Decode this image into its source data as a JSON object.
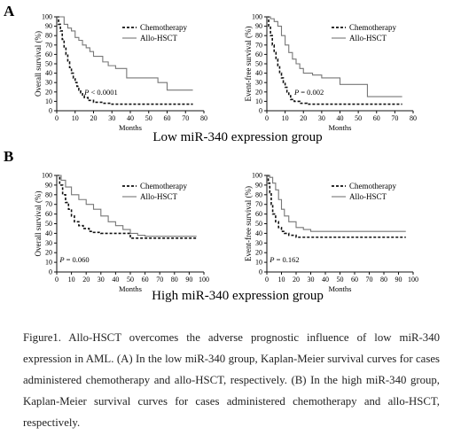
{
  "figure": {
    "panel_a_label": "A",
    "panel_b_label": "B",
    "group_a_title": "Low miR-340 expression group",
    "group_b_title": "High miR-340 expression group"
  },
  "caption": "Figure1. Allo-HSCT overcomes the adverse prognostic influence of low miR-340 expression in AML. (A) In the low miR-340 group, Kaplan-Meier survival curves for cases administered chemotherapy and allo-HSCT, respectively. (B) In the high miR-340 group, Kaplan-Meier survival curves for cases administered chemotherapy and allo-HSCT, respectively.",
  "colors": {
    "chemotherapy": "#111111",
    "allo_hsct": "#777777"
  },
  "chart_data": [
    {
      "type": "line",
      "panel": "A",
      "xlabel": "Months",
      "ylabel": "Overall survival (%)",
      "xlim": [
        0,
        80
      ],
      "ylim": [
        0,
        100
      ],
      "xticks": [
        "0",
        "10",
        "20",
        "30",
        "40",
        "50",
        "60",
        "70",
        "80"
      ],
      "yticks": [
        "0",
        "10",
        "20",
        "30",
        "40",
        "50",
        "60",
        "70",
        "80",
        "90",
        "100"
      ],
      "annotation": {
        "prefix": "P",
        "text": " < 0.0001",
        "x": 15,
        "y": 17
      },
      "legend_position": "top-right",
      "series": [
        {
          "name": "Chemotherapy",
          "style": "dashed",
          "step": true,
          "x": [
            0,
            1,
            2,
            3,
            4,
            5,
            6,
            7,
            8,
            9,
            10,
            11,
            12,
            13,
            14,
            15,
            17,
            20,
            25,
            30,
            40,
            50,
            60,
            74
          ],
          "y": [
            100,
            92,
            85,
            76,
            68,
            60,
            52,
            46,
            40,
            35,
            30,
            26,
            22,
            19,
            16,
            14,
            11,
            9,
            8,
            7,
            7,
            7,
            7,
            7
          ]
        },
        {
          "name": "Allo-HSCT",
          "style": "solid",
          "step": true,
          "x": [
            0,
            2,
            4,
            6,
            8,
            10,
            12,
            14,
            16,
            18,
            20,
            25,
            28,
            32,
            38,
            55,
            60,
            68,
            74
          ],
          "y": [
            100,
            100,
            92,
            88,
            85,
            78,
            75,
            70,
            67,
            63,
            58,
            52,
            48,
            45,
            35,
            30,
            22,
            22,
            22
          ]
        }
      ]
    },
    {
      "type": "line",
      "panel": "A",
      "xlabel": "Months",
      "ylabel": "Event-free survival (%)",
      "xlim": [
        0,
        80
      ],
      "ylim": [
        0,
        100
      ],
      "xticks": [
        "0",
        "10",
        "20",
        "30",
        "40",
        "50",
        "60",
        "70",
        "80"
      ],
      "yticks": [
        "0",
        "10",
        "20",
        "30",
        "40",
        "50",
        "60",
        "70",
        "80",
        "90",
        "100"
      ],
      "annotation": {
        "prefix": "P",
        "text": " = 0.002",
        "x": 15,
        "y": 17
      },
      "legend_position": "top-right",
      "series": [
        {
          "name": "Chemotherapy",
          "style": "dashed",
          "step": true,
          "x": [
            0,
            1,
            2,
            3,
            4,
            5,
            6,
            7,
            8,
            9,
            10,
            11,
            12,
            13,
            15,
            18,
            22,
            30,
            40,
            74
          ],
          "y": [
            100,
            90,
            80,
            70,
            62,
            55,
            48,
            40,
            35,
            30,
            25,
            20,
            16,
            12,
            10,
            8,
            7,
            7,
            7,
            7
          ]
        },
        {
          "name": "Allo-HSCT",
          "style": "solid",
          "step": true,
          "x": [
            0,
            2,
            4,
            6,
            8,
            10,
            12,
            14,
            16,
            18,
            20,
            25,
            30,
            40,
            45,
            55,
            74
          ],
          "y": [
            100,
            98,
            95,
            90,
            80,
            70,
            62,
            55,
            50,
            45,
            40,
            38,
            35,
            28,
            28,
            15,
            15
          ]
        }
      ]
    },
    {
      "type": "line",
      "panel": "B",
      "xlabel": "Months",
      "ylabel": "Overall survival (%)",
      "xlim": [
        0,
        100
      ],
      "ylim": [
        0,
        100
      ],
      "xticks": [
        "0",
        "10",
        "20",
        "30",
        "40",
        "50",
        "60",
        "70",
        "80",
        "90",
        "100"
      ],
      "yticks": [
        "0",
        "10",
        "20",
        "30",
        "40",
        "50",
        "60",
        "70",
        "80",
        "90",
        "100"
      ],
      "annotation": {
        "prefix": "P",
        "text": " = 0.060",
        "x": 2,
        "y": 10
      },
      "legend_position": "top-right",
      "series": [
        {
          "name": "Chemotherapy",
          "style": "dashed",
          "step": true,
          "x": [
            0,
            2,
            4,
            6,
            8,
            10,
            12,
            15,
            18,
            22,
            25,
            30,
            40,
            50,
            60,
            70,
            80,
            95
          ],
          "y": [
            100,
            90,
            80,
            72,
            65,
            58,
            52,
            48,
            45,
            42,
            41,
            40,
            40,
            35,
            35,
            35,
            35,
            35
          ]
        },
        {
          "name": "Allo-HSCT",
          "style": "solid",
          "step": true,
          "x": [
            0,
            3,
            6,
            10,
            15,
            20,
            25,
            30,
            35,
            40,
            45,
            50,
            55,
            60,
            70,
            80,
            95
          ],
          "y": [
            100,
            95,
            88,
            80,
            75,
            70,
            65,
            58,
            52,
            48,
            44,
            40,
            38,
            37,
            37,
            37,
            37
          ]
        }
      ]
    },
    {
      "type": "line",
      "panel": "B",
      "xlabel": "Months",
      "ylabel": "Event-free survival (%)",
      "xlim": [
        0,
        100
      ],
      "ylim": [
        0,
        100
      ],
      "xticks": [
        "0",
        "10",
        "20",
        "30",
        "40",
        "50",
        "60",
        "70",
        "80",
        "90",
        "100"
      ],
      "yticks": [
        "0",
        "10",
        "20",
        "30",
        "40",
        "50",
        "60",
        "70",
        "80",
        "90",
        "100"
      ],
      "annotation": {
        "prefix": "P",
        "text": " = 0.162",
        "x": 2,
        "y": 10
      },
      "legend_position": "top-right",
      "series": [
        {
          "name": "Chemotherapy",
          "style": "dashed",
          "step": true,
          "x": [
            0,
            1,
            2,
            3,
            4,
            6,
            8,
            10,
            12,
            15,
            20,
            30,
            40,
            50,
            95
          ],
          "y": [
            100,
            92,
            82,
            70,
            60,
            52,
            46,
            42,
            40,
            38,
            36,
            36,
            36,
            36,
            36
          ]
        },
        {
          "name": "Allo-HSCT",
          "style": "solid",
          "step": true,
          "x": [
            0,
            2,
            4,
            6,
            8,
            10,
            12,
            15,
            20,
            25,
            30,
            40,
            60,
            95
          ],
          "y": [
            100,
            98,
            92,
            85,
            75,
            65,
            58,
            52,
            46,
            44,
            42,
            42,
            42,
            42
          ]
        }
      ]
    }
  ]
}
